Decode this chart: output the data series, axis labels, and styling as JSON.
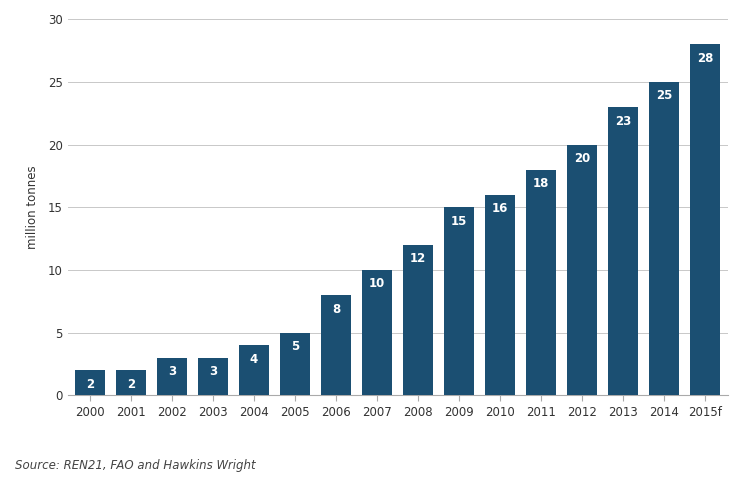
{
  "categories": [
    "2000",
    "2001",
    "2002",
    "2003",
    "2004",
    "2005",
    "2006",
    "2007",
    "2008",
    "2009",
    "2010",
    "2011",
    "2012",
    "2013",
    "2014",
    "2015f"
  ],
  "values": [
    2,
    2,
    3,
    3,
    4,
    5,
    8,
    10,
    12,
    15,
    16,
    18,
    20,
    23,
    25,
    28
  ],
  "bar_color": "#1b4f72",
  "label_color": "#ffffff",
  "ylabel": "million tonnes",
  "ylim": [
    0,
    30
  ],
  "yticks": [
    0,
    5,
    10,
    15,
    20,
    25,
    30
  ],
  "source_text": "Source: REN21, FAO and Hawkins Wright",
  "background_color": "#ffffff",
  "grid_color": "#c8c8c8",
  "label_fontsize": 8.5,
  "axis_fontsize": 8.5,
  "ylabel_fontsize": 8.5,
  "source_fontsize": 8.5,
  "bar_width": 0.75
}
